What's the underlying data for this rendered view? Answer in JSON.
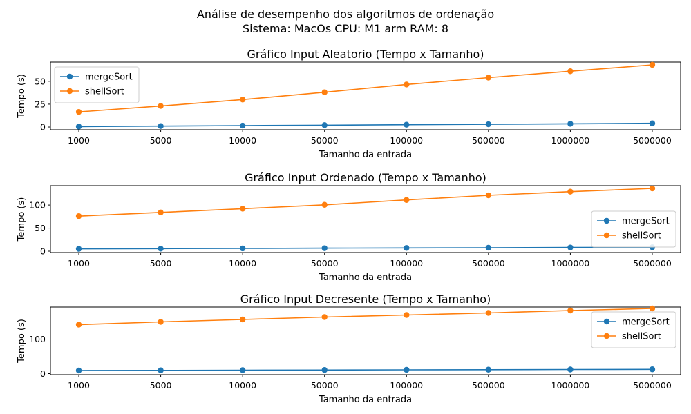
{
  "figure": {
    "title_line1": "Análise de desempenho dos algoritmos de ordenação",
    "title_line2": "Sistema: MacOs CPU: M1 arm RAM: 8"
  },
  "chart_data": [
    {
      "type": "line",
      "title": "Gráfico Input Aleatorio (Tempo x Tamanho)",
      "xlabel": "Tamanho da entrada",
      "ylabel": "Tempo (s)",
      "categories": [
        "1000",
        "5000",
        "10000",
        "50000",
        "100000",
        "500000",
        "1000000",
        "5000000"
      ],
      "ylim": [
        -3,
        71
      ],
      "yticks": [
        0,
        25,
        50
      ],
      "grid": false,
      "legend_position": "upper-left",
      "series": [
        {
          "name": "mergeSort",
          "color": "#1f77b4",
          "values": [
            0.5,
            1.0,
            1.5,
            2.0,
            2.5,
            3.0,
            3.5,
            4.0
          ]
        },
        {
          "name": "shellSort",
          "color": "#ff7f0e",
          "values": [
            16.5,
            23,
            30,
            38,
            46.5,
            54,
            61,
            68
          ]
        }
      ]
    },
    {
      "type": "line",
      "title": "Gráfico Input Ordenado (Tempo x Tamanho)",
      "xlabel": "Tamanho da entrada",
      "ylabel": "Tempo (s)",
      "categories": [
        "1000",
        "5000",
        "10000",
        "50000",
        "100000",
        "500000",
        "1000000",
        "5000000"
      ],
      "ylim": [
        -3,
        142
      ],
      "yticks": [
        0,
        50,
        100
      ],
      "grid": false,
      "legend_position": "lower-right",
      "series": [
        {
          "name": "mergeSort",
          "color": "#1f77b4",
          "values": [
            5,
            5.5,
            6,
            6.5,
            7,
            7.5,
            8,
            8.5
          ]
        },
        {
          "name": "shellSort",
          "color": "#ff7f0e",
          "values": [
            76,
            84,
            92,
            100.5,
            111,
            121,
            129,
            136
          ]
        }
      ]
    },
    {
      "type": "line",
      "title": "Gráfico Input Decresente (Tempo x Tamanho)",
      "xlabel": "Tamanho da entrada",
      "ylabel": "Tempo (s)",
      "categories": [
        "1000",
        "5000",
        "10000",
        "50000",
        "100000",
        "500000",
        "1000000",
        "5000000"
      ],
      "ylim": [
        -3,
        193
      ],
      "yticks": [
        0,
        100
      ],
      "grid": false,
      "legend_position": "upper-right",
      "series": [
        {
          "name": "mergeSort",
          "color": "#1f77b4",
          "values": [
            9,
            9.5,
            10,
            10.5,
            11,
            11.5,
            12,
            12.5
          ]
        },
        {
          "name": "shellSort",
          "color": "#ff7f0e",
          "values": [
            142,
            150,
            157,
            164,
            170,
            176,
            183,
            189
          ]
        }
      ]
    }
  ]
}
